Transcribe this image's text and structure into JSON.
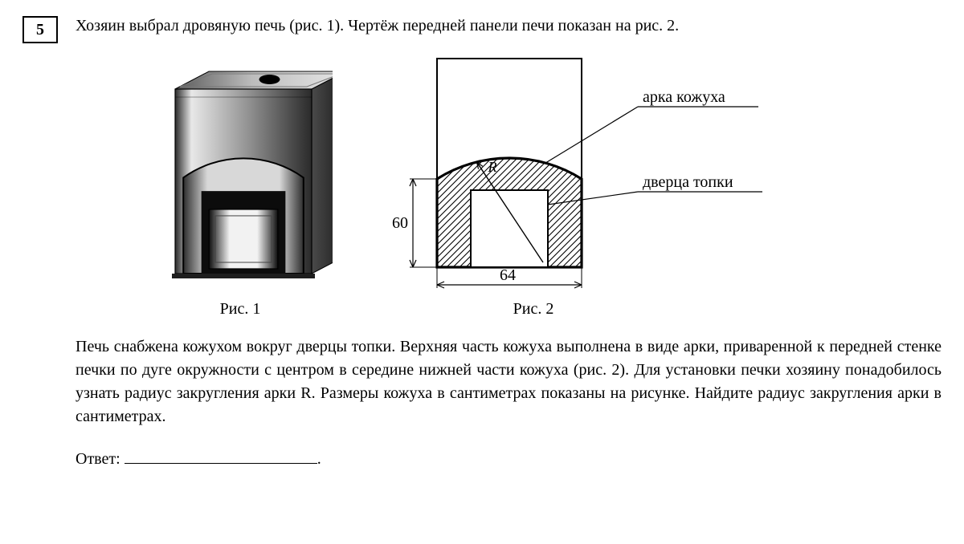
{
  "question_number": "5",
  "intro_text": "Хозяин выбрал дровяную печь (рис. 1). Чертёж передней панели печи показан на рис. 2.",
  "fig1_caption": "Рис. 1",
  "fig2_caption": "Рис. 2",
  "body_text": "Печь снабжена кожухом вокруг дверцы топки. Верхняя часть кожуха выполнена в виде арки, приваренной к передней стенке печки по дуге окружности с центром в середине нижней части кожуха (рис. 2). Для установки печки хозяину понадобилось узнать радиус закругления арки R. Размеры кожуха в сантиметрах показаны на рисунке. Найдите радиус закругления арки в сантиметрах.",
  "answer_label": "Ответ:",
  "answer_period": ".",
  "diagram": {
    "label_arc": "арка кожуха",
    "label_door": "дверца топки",
    "label_R": "R",
    "dim_height": "60",
    "dim_width": "64",
    "outer_width": 180,
    "outer_rect_height": 260,
    "kozh_width": 180,
    "kozh_height_straight": 110,
    "arc_rise": 26,
    "door_w": 96,
    "door_h": 96,
    "stroke": "#000000",
    "hatch": "#000000",
    "fill_white": "#ffffff"
  },
  "stove3d": {
    "body_w": 170,
    "body_h": 230,
    "depth": 42,
    "colors": {
      "top_left": "#5a5a5a",
      "top_right": "#e6e6e6",
      "front_light": "#e8e8e8",
      "front_dark": "#2a2a2a",
      "side_dark": "#1b1b1b",
      "edge": "#000000",
      "burner": "#000000",
      "door_light": "#f2f2f2",
      "door_dark": "#0e0e0e",
      "shield_light": "#d8d8d8",
      "shield_dark": "#2e2e2e"
    }
  }
}
